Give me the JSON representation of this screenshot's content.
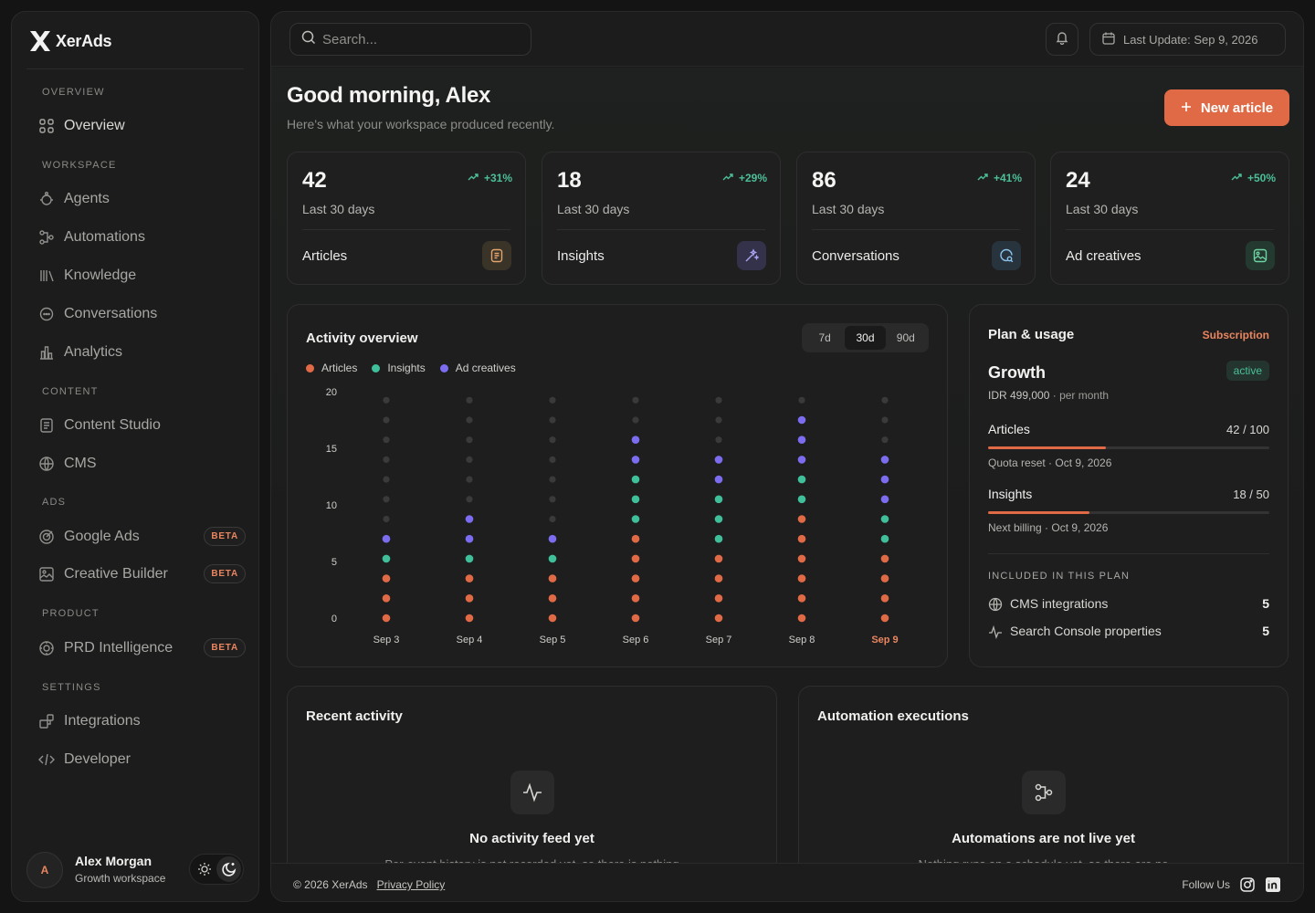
{
  "brand": {
    "name": "XerAds"
  },
  "sidebar": {
    "sections": {
      "overview": "OVERVIEW",
      "workspace": "WORKSPACE",
      "content": "CONTENT",
      "ads": "ADS",
      "product": "PRODUCT",
      "settings": "SETTINGS"
    },
    "items": {
      "overview": "Overview",
      "agents": "Agents",
      "automations": "Automations",
      "knowledge": "Knowledge",
      "conversations": "Conversations",
      "analytics": "Analytics",
      "content_studio": "Content Studio",
      "cms": "CMS",
      "google_ads": "Google Ads",
      "creative_builder": "Creative Builder",
      "prd_intelligence": "PRD Intelligence",
      "integrations": "Integrations",
      "developer": "Developer"
    },
    "beta_label": "BETA",
    "profile": {
      "initial": "A",
      "name": "Alex Morgan",
      "workspace": "Growth workspace"
    }
  },
  "topbar": {
    "search_placeholder": "Search...",
    "last_update": "Last Update: Sep 9, 2026"
  },
  "header": {
    "greeting": "Good morning, Alex",
    "subtitle": "Here's what your workspace produced recently.",
    "new_button": "New article"
  },
  "stats": [
    {
      "value": "42",
      "delta": "+31%",
      "period": "Last 30 days",
      "label": "Articles",
      "icon": "document-icon",
      "icon_bg": "#3a3428",
      "icon_color": "#e2a56d"
    },
    {
      "value": "18",
      "delta": "+29%",
      "period": "Last 30 days",
      "label": "Insights",
      "icon": "sparkle-icon",
      "icon_bg": "#34324a",
      "icon_color": "#a9a4f2"
    },
    {
      "value": "86",
      "delta": "+41%",
      "period": "Last 30 days",
      "label": "Conversations",
      "icon": "chat-search-icon",
      "icon_bg": "#27343e",
      "icon_color": "#8cc3ea"
    },
    {
      "value": "24",
      "delta": "+50%",
      "period": "Last 30 days",
      "label": "Ad creatives",
      "icon": "image-icon",
      "icon_bg": "#24392f",
      "icon_color": "#6cd3a2"
    }
  ],
  "activity": {
    "title": "Activity overview",
    "ranges": [
      "7d",
      "30d",
      "90d"
    ],
    "selected_range": "30d"
  },
  "chart_data": {
    "type": "dot-stack",
    "categories": [
      "Sep 3",
      "Sep 4",
      "Sep 5",
      "Sep 6",
      "Sep 7",
      "Sep 8",
      "Sep 9"
    ],
    "highlight_category": "Sep 9",
    "series": [
      {
        "name": "Articles",
        "color": "#e06a45",
        "values": [
          3,
          3,
          3,
          5,
          4,
          6,
          4
        ]
      },
      {
        "name": "Insights",
        "color": "#3fbf9a",
        "values": [
          1,
          1,
          1,
          3,
          3,
          2,
          2
        ]
      },
      {
        "name": "Ad creatives",
        "color": "#7b6cf0",
        "values": [
          1,
          2,
          1,
          2,
          2,
          3,
          3
        ]
      }
    ],
    "yticks": [
      0,
      5,
      10,
      15,
      20
    ],
    "ylim": [
      0,
      20
    ],
    "empty_color": "#3a3a3a"
  },
  "plan": {
    "title": "Plan & usage",
    "link": "Subscription",
    "name": "Growth",
    "status": "active",
    "price": "IDR 499,000",
    "per": "· per month",
    "usage": [
      {
        "label": "Articles",
        "value": "42 / 100",
        "fraction": 0.42,
        "note": "Quota reset · Oct 9, 2026"
      },
      {
        "label": "Insights",
        "value": "18 / 50",
        "fraction": 0.36,
        "note": "Next billing · Oct 9, 2026"
      }
    ],
    "included_title": "INCLUDED IN THIS PLAN",
    "included": [
      {
        "label": "CMS integrations",
        "value": "5"
      },
      {
        "label": "Search Console properties",
        "value": "5"
      }
    ]
  },
  "recent": {
    "title": "Recent activity",
    "empty_title": "No activity feed yet",
    "empty_text": "Per-event history is not recorded yet, so there is nothing"
  },
  "automation": {
    "title": "Automation executions",
    "empty_title": "Automations are not live yet",
    "empty_text": "Nothing runs on a schedule yet, so there are no"
  },
  "footer": {
    "copyright": "© 2026 XerAds",
    "privacy": "Privacy Policy",
    "follow": "Follow Us"
  },
  "colors": {
    "accent": "#e06a45",
    "success": "#4cbf9a"
  }
}
